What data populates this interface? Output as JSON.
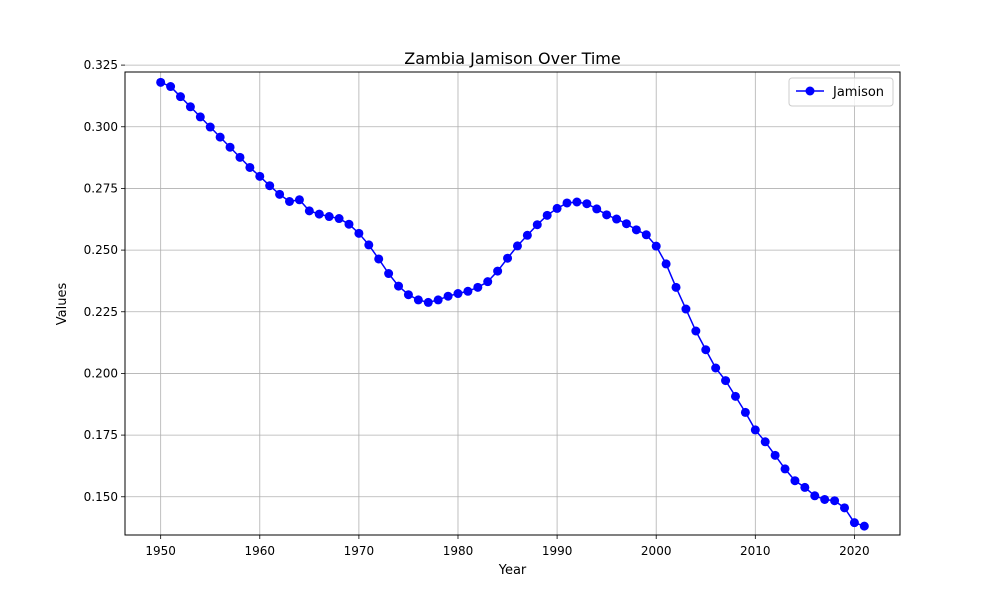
{
  "chart_data": {
    "type": "line",
    "title": "Zambia Jamison Over Time",
    "xlabel": "Year",
    "ylabel": "Values",
    "xlim": [
      1946.4,
      2024.6
    ],
    "ylim": [
      0.1345,
      0.3222
    ],
    "xticks": [
      1950,
      1960,
      1970,
      1980,
      1990,
      2000,
      2010,
      2020
    ],
    "xtick_labels": [
      "1950",
      "1960",
      "1970",
      "1980",
      "1990",
      "2000",
      "2010",
      "2020"
    ],
    "yticks": [
      0.15,
      0.175,
      0.2,
      0.225,
      0.25,
      0.275,
      0.3,
      0.325
    ],
    "ytick_labels": [
      "0.150",
      "0.175",
      "0.200",
      "0.225",
      "0.250",
      "0.275",
      "0.300",
      "0.325"
    ],
    "grid": true,
    "legend_position": "top-right",
    "x": [
      1950,
      1951,
      1952,
      1953,
      1954,
      1955,
      1956,
      1957,
      1958,
      1959,
      1960,
      1961,
      1962,
      1963,
      1964,
      1965,
      1966,
      1967,
      1968,
      1969,
      1970,
      1971,
      1972,
      1973,
      1974,
      1975,
      1976,
      1977,
      1978,
      1979,
      1980,
      1981,
      1982,
      1983,
      1984,
      1985,
      1986,
      1987,
      1988,
      1989,
      1990,
      1991,
      1992,
      1993,
      1994,
      1995,
      1996,
      1997,
      1998,
      1999,
      2000,
      2001,
      2002,
      2003,
      2004,
      2005,
      2006,
      2007,
      2008,
      2009,
      2010,
      2011,
      2012,
      2013,
      2014,
      2015,
      2016,
      2017,
      2018,
      2019,
      2020,
      2021
    ],
    "series": [
      {
        "name": "Jamison",
        "color": "#0000ff",
        "marker": "circle",
        "values": [
          0.318,
          0.3163,
          0.3122,
          0.3081,
          0.304,
          0.2999,
          0.2958,
          0.2917,
          0.2876,
          0.2835,
          0.2799,
          0.2761,
          0.2726,
          0.2697,
          0.2704,
          0.2659,
          0.2646,
          0.2636,
          0.2628,
          0.2605,
          0.2568,
          0.2521,
          0.2464,
          0.2405,
          0.2354,
          0.2319,
          0.2298,
          0.2288,
          0.2298,
          0.2313,
          0.2324,
          0.2333,
          0.2349,
          0.2372,
          0.2415,
          0.2467,
          0.2517,
          0.256,
          0.2603,
          0.2641,
          0.2669,
          0.2691,
          0.2695,
          0.2688,
          0.2667,
          0.2643,
          0.2626,
          0.2607,
          0.2582,
          0.2562,
          0.2516,
          0.2444,
          0.2349,
          0.2261,
          0.2172,
          0.2096,
          0.2022,
          0.1971,
          0.1907,
          0.1842,
          0.1771,
          0.1723,
          0.1668,
          0.1613,
          0.1565,
          0.1538,
          0.1504,
          0.1489,
          0.1484,
          0.1455,
          0.1395,
          0.1381
        ]
      }
    ]
  }
}
